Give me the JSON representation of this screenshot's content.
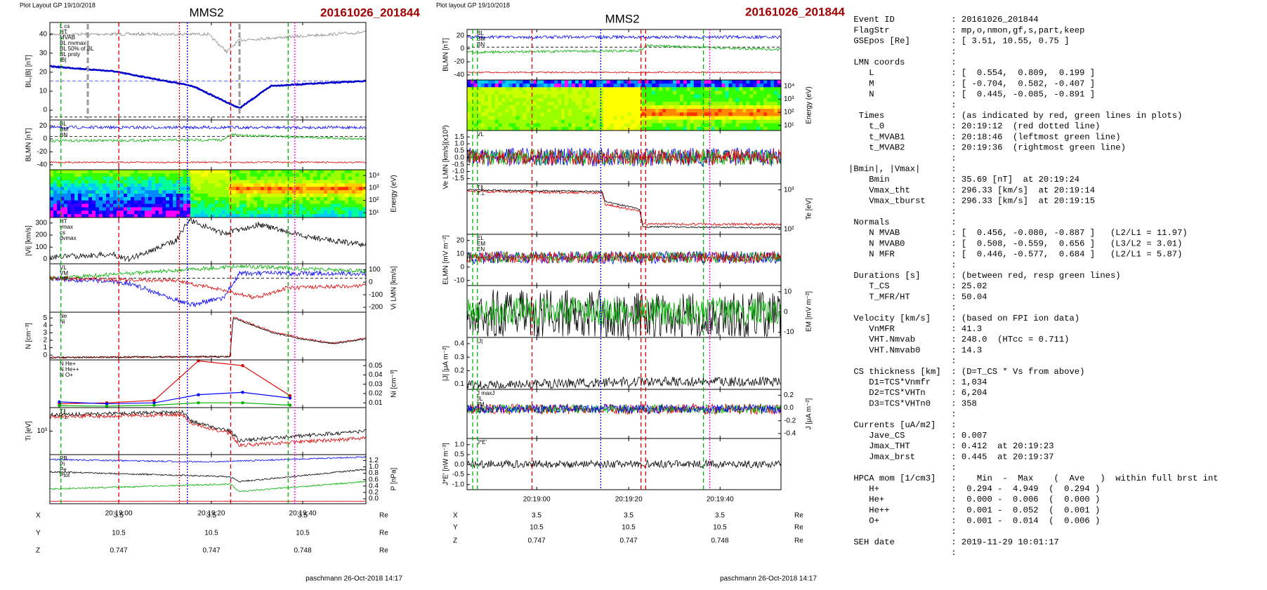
{
  "left_plot": {
    "header": "Plot Layout GP 19/10/2018",
    "title": "MMS2",
    "event_id": "20161026_201844",
    "footer": "paschmann 26-Oct-2018 14:17",
    "time_labels": [
      "20:19:00",
      "20:19:20",
      "20:19:40"
    ],
    "panels": [
      {
        "ylabel": "BL,|B| [nT]",
        "label_side": "left",
        "ticks": [
          "40",
          "30",
          "20",
          "10",
          "0"
        ],
        "legend": [
          {
            "label": "L cs",
            "color": "#e00000"
          },
          {
            "label": "HT",
            "color": "#00b000"
          },
          {
            "label": "MVAB",
            "color": "#00b000"
          },
          {
            "label": "BL mvmax",
            "color": "#888888"
          },
          {
            "label": "BL 50% of BL",
            "color": "#3333ff"
          },
          {
            "label": "BL prsty",
            "color": "#0000cc"
          },
          {
            "label": "|B|",
            "color": "#0000cc"
          }
        ]
      },
      {
        "ylabel": "BLMN [nT]",
        "label_side": "left",
        "ticks": [
          "20",
          "0",
          "-20",
          "-40"
        ],
        "legend": [
          {
            "label": "BL",
            "color": "#0000ff"
          },
          {
            "label": "BM",
            "color": "#00b000"
          },
          {
            "label": "BN",
            "color": "#e00000"
          }
        ]
      },
      {
        "ylabel": "Energy (eV)",
        "label_side": "right",
        "ticks": [
          "10⁴",
          "10³",
          "10²",
          "10¹"
        ],
        "legend": []
      },
      {
        "ylabel": "|Vi| [km/s]",
        "label_side": "left",
        "ticks": [
          "300",
          "200",
          "100",
          "0"
        ],
        "legend": [
          {
            "label": "HT",
            "color": "#00b000"
          },
          {
            "label": "vmax",
            "color": "#00aaff"
          },
          {
            "label": "cs",
            "color": "#e00000"
          },
          {
            "label": "dvmax",
            "color": "#0000cc"
          }
        ]
      },
      {
        "ylabel": "Vi LMN [km/s]",
        "label_side": "right",
        "ticks": [
          "100",
          "0",
          "-100",
          "-200"
        ],
        "legend": [
          {
            "label": "VL",
            "color": "#0000ff"
          },
          {
            "label": "VM",
            "color": "#00b000"
          },
          {
            "label": "VN",
            "color": "#e00000"
          }
        ]
      },
      {
        "ylabel": "N [cm⁻³]",
        "label_side": "left",
        "ticks": [
          "5",
          "4",
          "3",
          "2",
          "1",
          "0"
        ],
        "legend": [
          {
            "label": "Ne",
            "color": "#e00000"
          },
          {
            "label": "Ni",
            "color": "#000000"
          }
        ]
      },
      {
        "ylabel": "Ni [cm⁻³]",
        "label_side": "right",
        "ticks": [
          "0.05",
          "0.04",
          "0.03",
          "0.02",
          "0.01"
        ],
        "legend": [
          {
            "label": "N He+",
            "color": "#00b000"
          },
          {
            "label": "N He++",
            "color": "#e00000"
          },
          {
            "label": "N O+",
            "color": "#0000ff"
          }
        ]
      },
      {
        "ylabel": "Ti [eV]",
        "label_side": "left",
        "ticks": [
          "10³"
        ],
        "legend": [
          {
            "label": "T∥",
            "color": "#e00000"
          },
          {
            "label": "T⊥",
            "color": "#000000"
          }
        ]
      },
      {
        "ylabel": "P [nPa]",
        "label_side": "right",
        "ticks": [
          "1.2",
          "1.0",
          "0.8",
          "0.6",
          "0.4",
          "0.2",
          "0.0"
        ],
        "legend": [
          {
            "label": "PB",
            "color": "#0000ff"
          },
          {
            "label": "Pi",
            "color": "#e00000"
          },
          {
            "label": "Pe",
            "color": "#000000"
          },
          {
            "label": "Ptot",
            "color": "#00b000"
          }
        ]
      }
    ],
    "ephemeris": [
      [
        "X",
        "3.5",
        "3.5",
        "3.5",
        "Re"
      ],
      [
        "Y",
        "10.5",
        "10.5",
        "10.5",
        "Re"
      ],
      [
        "Z",
        "0.747",
        "0.747",
        "0.748",
        "Re"
      ]
    ]
  },
  "middle_plot": {
    "header": "Plot layout GP 19/10/2018",
    "title": "MMS2",
    "event_id": "20161026_201844",
    "footer": "paschmann 26-Oct-2018 14:17",
    "time_labels": [
      "20:19:00",
      "20:19:20",
      "20:19:40"
    ],
    "panels": [
      {
        "ylabel": "BLMN [nT]",
        "label_side": "left",
        "ticks": [
          "20",
          "0",
          "-20",
          "-40"
        ],
        "legend": [
          {
            "label": "BL",
            "color": "#0000ff"
          },
          {
            "label": "BM",
            "color": "#00b000"
          },
          {
            "label": "BN",
            "color": "#e00000"
          }
        ]
      },
      {
        "ylabel": "Energy (eV)",
        "label_side": "right",
        "ticks": [
          "10⁴",
          "10³",
          "10²",
          "10¹"
        ],
        "legend": []
      },
      {
        "ylabel": "Ve LMN [km/s](x10³)",
        "label_side": "left",
        "ticks": [
          "1.5",
          "1.0",
          "0.5",
          "0.0",
          "-0.5",
          "-1.0",
          "-1.5"
        ],
        "legend": [
          {
            "label": "VL",
            "color": "#0000ff"
          }
        ]
      },
      {
        "ylabel": "Te [eV]",
        "label_side": "right",
        "ticks": [
          "10³",
          "10²"
        ],
        "legend": [
          {
            "label": "T∥",
            "color": "#e00000"
          },
          {
            "label": "T⊥",
            "color": "#000000"
          }
        ]
      },
      {
        "ylabel": "ELMN [mV m⁻²]",
        "label_side": "left",
        "ticks": [
          "20",
          "10",
          "0",
          "-10"
        ],
        "legend": [
          {
            "label": "EL",
            "color": "#0000ff"
          },
          {
            "label": "EM",
            "color": "#00b000"
          },
          {
            "label": "EN",
            "color": "#e00000"
          }
        ]
      },
      {
        "ylabel": "EM [mV m⁻²]",
        "label_side": "right",
        "ticks": [
          "10",
          "0",
          "-10"
        ],
        "legend": []
      },
      {
        "ylabel": "|J| [μA m⁻²]",
        "label_side": "left",
        "ticks": [
          "0.4",
          "0.3",
          "0.2",
          "0.1"
        ],
        "legend": [
          {
            "label": "|J|",
            "color": "#000000"
          }
        ]
      },
      {
        "ylabel": "J [μA m⁻²]",
        "label_side": "right",
        "ticks": [
          "0.2",
          "0.0",
          "-0.2",
          "-0.4"
        ],
        "legend": [
          {
            "label": "J maxJ",
            "color": "#cc00cc"
          },
          {
            "label": "JL",
            "color": "#0000ff"
          },
          {
            "label": "JM",
            "color": "#00b000"
          },
          {
            "label": "JN",
            "color": "#e00000"
          }
        ]
      },
      {
        "ylabel": "J*E' [nW m⁻³]",
        "label_side": "left",
        "ticks": [
          "1.0",
          "0.5",
          "0.0",
          "-0.5",
          "-1.0"
        ],
        "legend": [
          {
            "label": "J*E'",
            "color": "#000000"
          }
        ]
      }
    ],
    "ephemeris": [
      [
        "X",
        "3.5",
        "3.5",
        "3.5",
        "Re"
      ],
      [
        "Y",
        "10.5",
        "10.5",
        "10.5",
        "Re"
      ],
      [
        "Z",
        "0.747",
        "0.747",
        "0.748",
        "Re"
      ]
    ]
  },
  "info_panel": {
    "lines": [
      " Event ID           : 20161026_201844",
      " FlagStr            : mp,o,nmon,gf,s,part,keep",
      " GSEpos [Re]        : [ 3.51, 10.55, 0.75 ]",
      "                    :",
      " LMN coords         :",
      "    L               : [  0.554,  0.809,  0.199 ]",
      "    M               : [ -0.704,  0.582, -0.407 ]",
      "    N               : [  0.445, -0.085, -0.891 ]",
      "                    :",
      "  Times             : (as indicated by red, green lines in plots)",
      "    t_0             : 20:19:12  (red dotted line)",
      "    t_MVAB1         : 20:18:46  (leftmost green line)",
      "    t_MVAB2         : 20:19:36  (rightmost green line)",
      "                    :",
      "|Bmin|, |Vmax|      :",
      "    Bmin            : 35.69 [nT]  at 20:19:24",
      "    Vmax_tht        : 296.33 [km/s]  at 20:19:14",
      "    Vmax_tburst     : 296.33 [km/s]  at 20:19:15",
      "                    :",
      " Normals            :",
      "    N MVAB          : [  0.456, -0.080, -0.887 ]   (L2/L1 = 11.97)",
      "    N MVAB0         : [  0.508, -0.559,  0.656 ]   (L3/L2 = 3.01)",
      "    N MFR           : [  0.446, -0.577,  0.684 ]   (L2/L1 = 5.87)",
      "                    :",
      " Durations [s]      : (between red, resp green lines)",
      "    T_CS            : 25.02",
      "    T_MFR/HT        : 50.04",
      "                    :",
      " Velocity [km/s]    : (based on FPI ion data)",
      "    VnMFR           : 41.3",
      "    VHT.Nmvab       : 248.0  (HTcc = 0.711)",
      "    VHT.Nmvab0      : 14.3",
      "                    :",
      " CS thickness [km]  : (D=T_CS * Vs from above)",
      "    D1=TCS*Vnmfr    : 1,034",
      "    D2=TCS*VHTn     : 6,204",
      "    D3=TCS*VHTn0    : 358",
      "                    :",
      " Currents [uA/m2]   :",
      "    Jave_CS         : 0.007",
      "    Jmax_THT        : 0.412  at 20:19:23",
      "    Jmax_brst       : 0.445  at 20:19:37",
      "                    :",
      " HPCA mom [1/cm3]   :    Min  -  Max    (  Ave   )  within full brst int",
      "    H+              :  0.294 -  4.949  (  0.294 )",
      "    He+             :  0.000 -  0.006  (  0.000 )",
      "    He++            :  0.001 -  0.052  (  0.001 )",
      "    O+              :  0.001 -  0.014  (  0.006 )",
      "                    :",
      " SEH date           : 2019-11-29 10:01:17",
      "                    :"
    ]
  }
}
